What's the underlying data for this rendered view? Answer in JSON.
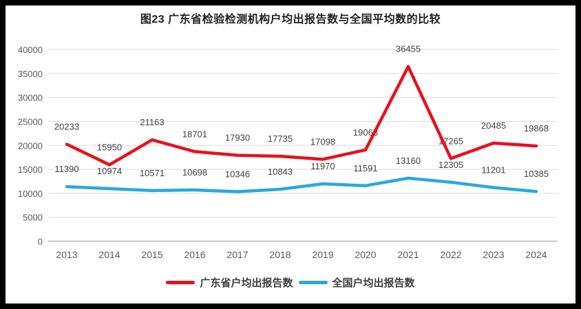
{
  "colors": {
    "frame": "#000000",
    "background": "#ffffff",
    "gridline": "#dadada",
    "axis_line": "#c8c8c8",
    "tick_label": "#595959",
    "data_label": "#404040",
    "title_text": "#1f1f1f",
    "legend_text": "#3f3f3f"
  },
  "chart_data": {
    "type": "line",
    "title": "图23  广东省检验检测机构户均出报告数与全国平均数的比较",
    "categories": [
      "2013",
      "2014",
      "2015",
      "2016",
      "2017",
      "2018",
      "2019",
      "2020",
      "2021",
      "2022",
      "2023",
      "2024"
    ],
    "series": [
      {
        "name": "广东省户均出报告数",
        "color": "#e8101e",
        "values": [
          20233,
          15950,
          21163,
          18701,
          17930,
          17735,
          17098,
          19063,
          36455,
          17265,
          20485,
          19868
        ]
      },
      {
        "name": "全国户均出报告数",
        "color": "#29a9dc",
        "values": [
          11390,
          10974,
          10571,
          10698,
          10346,
          10843,
          11970,
          11591,
          13160,
          12305,
          11201,
          10385
        ]
      }
    ],
    "xlabel": "",
    "ylabel": "",
    "ylim": [
      0,
      40000
    ],
    "y_ticks": [
      0,
      5000,
      10000,
      15000,
      20000,
      25000,
      30000,
      35000,
      40000
    ],
    "grid": true,
    "data_labels": true,
    "legend_position": "bottom"
  }
}
